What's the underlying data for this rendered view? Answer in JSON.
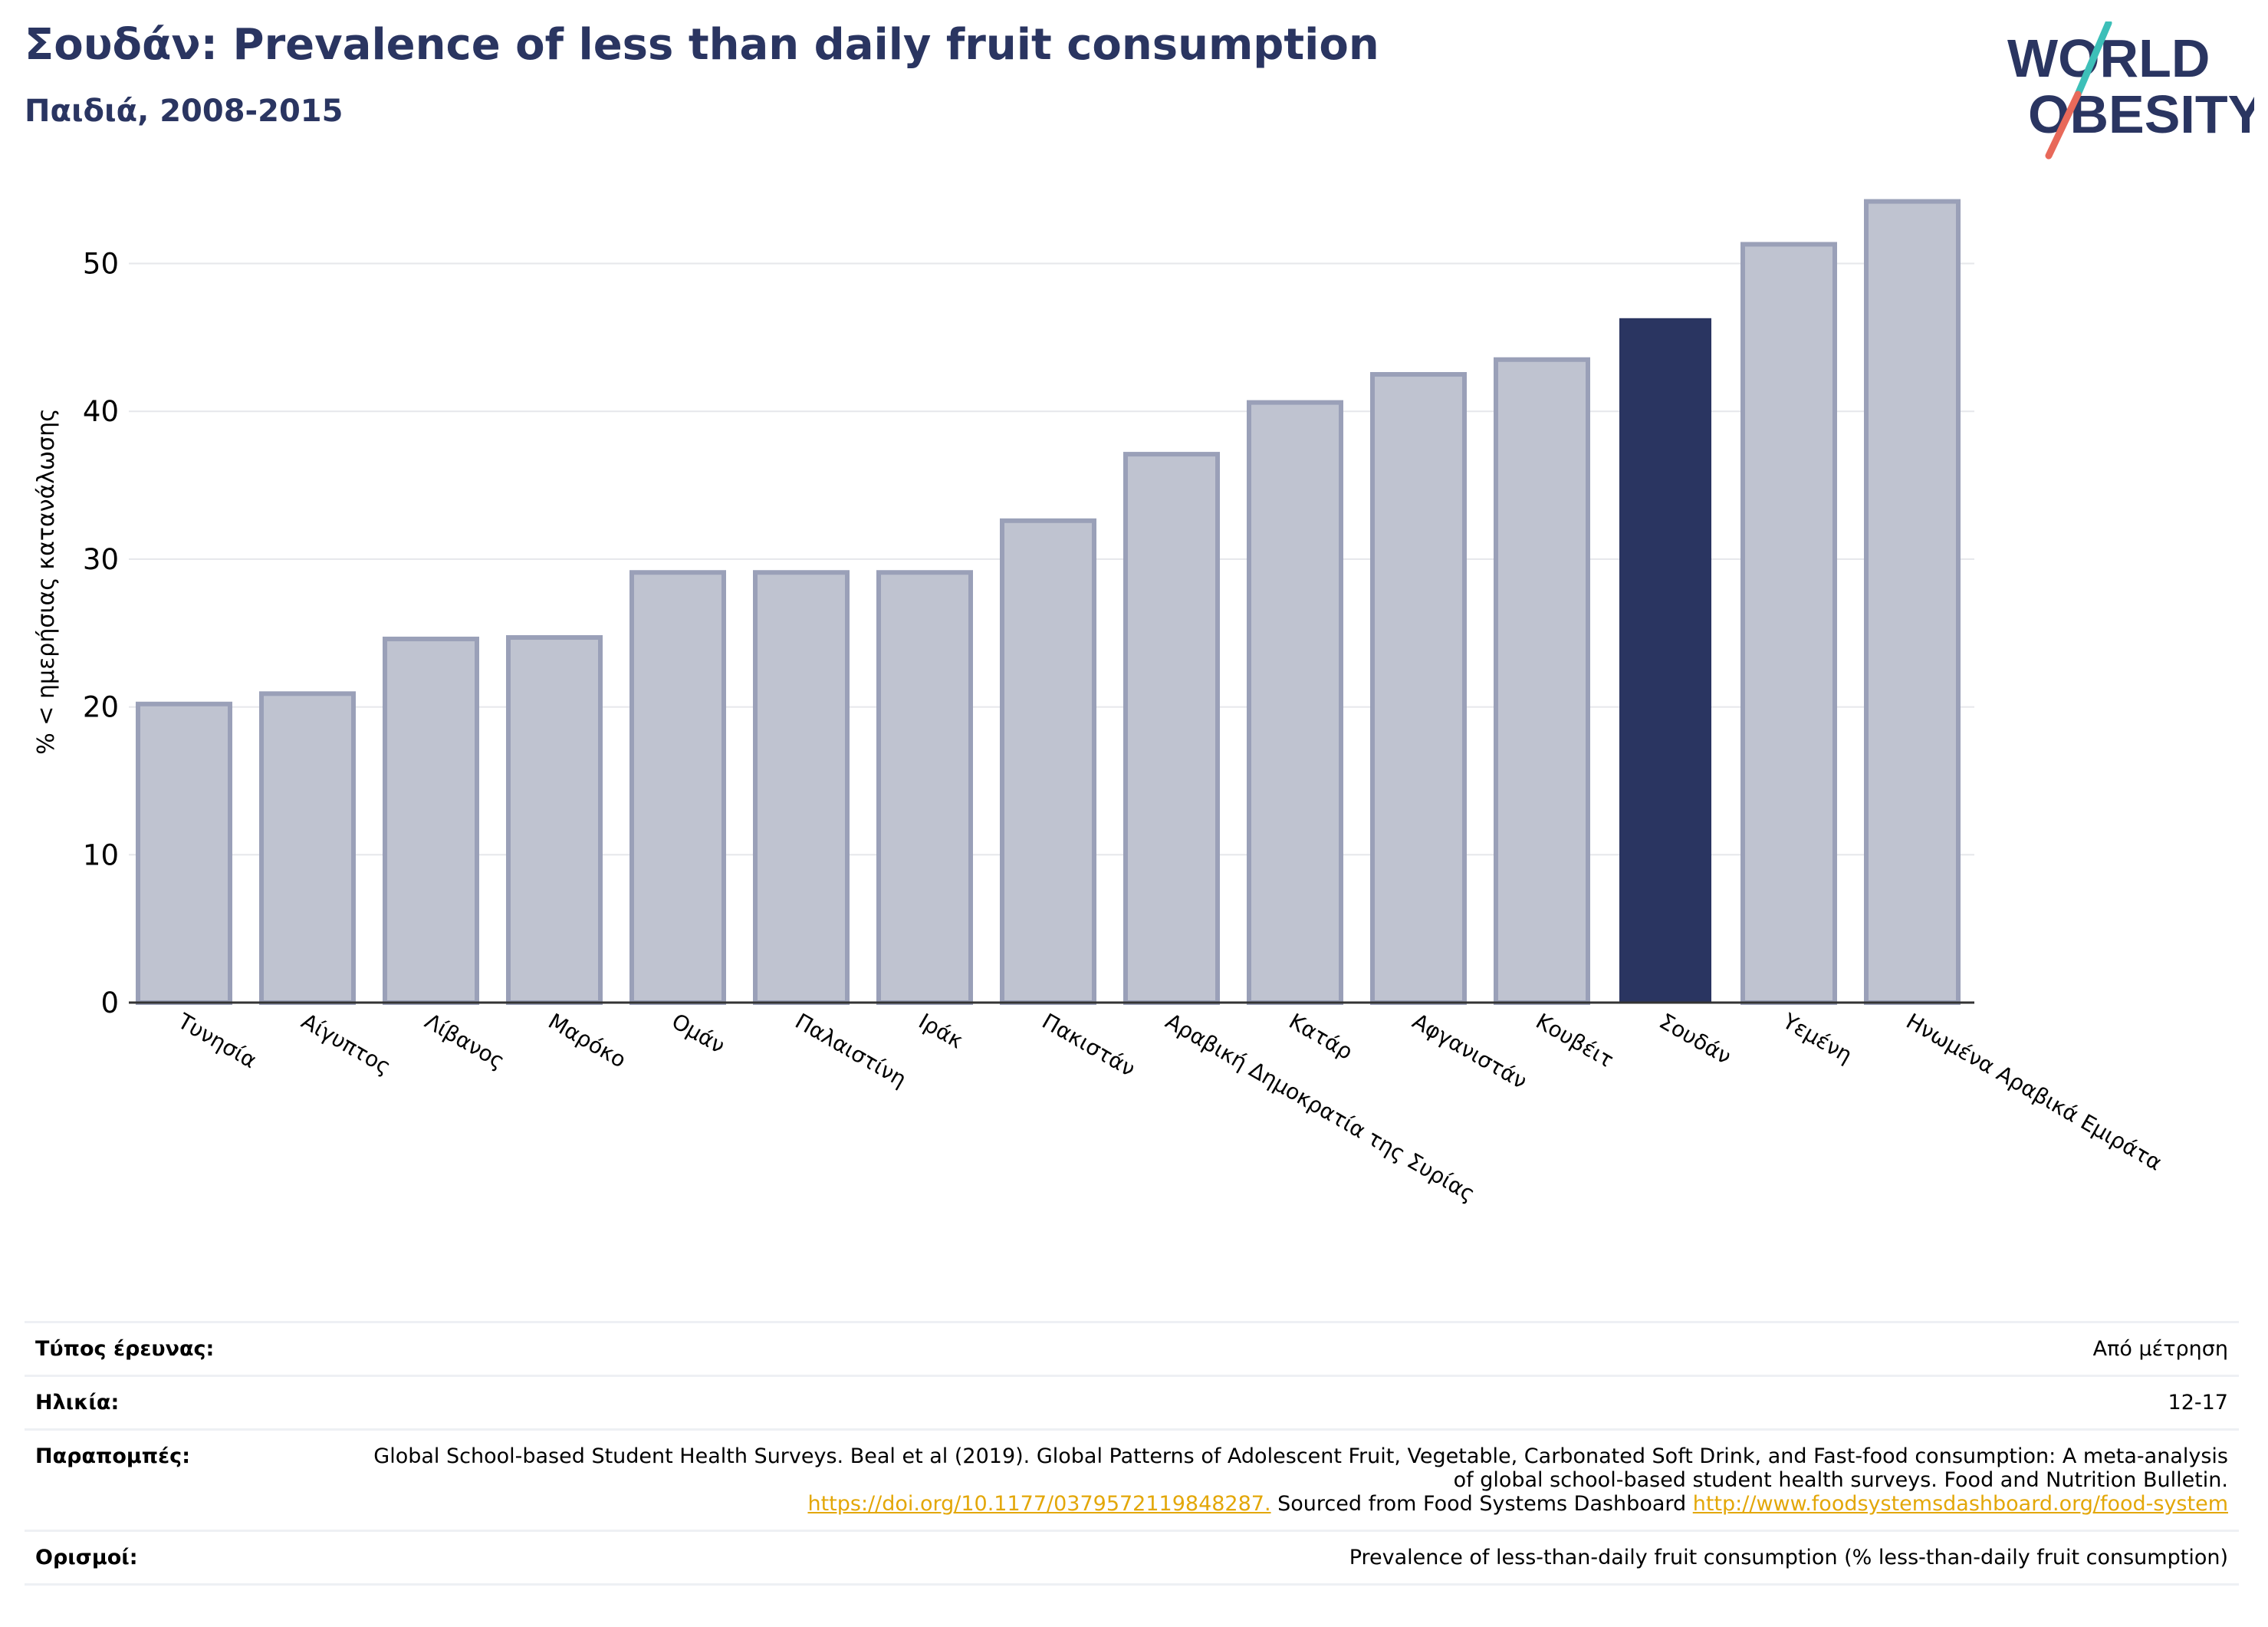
{
  "header": {
    "title": "Σουδάν: Prevalence of less than daily fruit consumption",
    "subtitle": "Παιδιά, 2008-2015"
  },
  "logo": {
    "line1": "WORLD",
    "line2": "OBESITY"
  },
  "colors": {
    "title": "#2a3561",
    "highlight_bar": "#2a3561",
    "bar_fill": "#bfc3d0",
    "bar_stroke": "#9aa0b8",
    "link": "#e3a708",
    "logo_teal": "#3dbfb8",
    "logo_red": "#e8695a"
  },
  "chart_data": {
    "type": "bar",
    "ylabel": "% < ημερήσιας κατανάλωσης",
    "xlabel": "",
    "ylim": [
      0,
      55
    ],
    "yticks": [
      0,
      10,
      20,
      30,
      40,
      50
    ],
    "grid": true,
    "categories": [
      "Τυνησία",
      "Αίγυπτος",
      "Λίβανος",
      "Μαρόκο",
      "Ομάν",
      "Παλαιστίνη",
      "Ιράκ",
      "Πακιστάν",
      "Αραβική Δημοκρατία της Συρίας",
      "Κατάρ",
      "Αφγανιστάν",
      "Κουβέιτ",
      "Σουδάν",
      "Υεμένη",
      "Ηνωμένα Αραβικά Εμιράτα"
    ],
    "values": [
      20.2,
      20.9,
      24.6,
      24.7,
      29.1,
      29.1,
      29.1,
      32.6,
      37.1,
      40.6,
      42.5,
      43.5,
      46.3,
      51.3,
      54.2
    ],
    "highlight": "Σουδάν"
  },
  "info": {
    "survey_type": {
      "label": "Τύπος έρευνας:",
      "value": "Από μέτρηση"
    },
    "age": {
      "label": "Ηλικία:",
      "value": "12-17"
    },
    "references": {
      "label": "Παραπομπές:",
      "text1": "Global School-based Student Health Surveys. Beal et al (2019). Global Patterns of Adolescent Fruit, Vegetable, Carbonated Soft Drink, and Fast-food consumption: A meta-analysis of global school-based student health surveys. Food and Nutrition Bulletin.",
      "link1": "https://doi.org/10.1177/0379572119848287.",
      "text2": " Sourced from Food Systems Dashboard ",
      "link2": "http://www.foodsystemsdashboard.org/food-system"
    },
    "definitions": {
      "label": "Ορισμοί:",
      "value": "Prevalence of less-than-daily fruit consumption (% less-than-daily fruit consumption)"
    }
  }
}
